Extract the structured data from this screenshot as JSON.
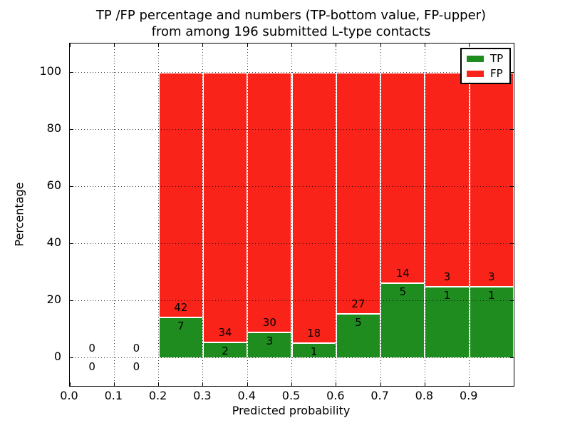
{
  "figure": {
    "title_line1": "TP /FP percentage and numbers (TP-bottom value, FP-upper)",
    "title_line2": "from among 196 submitted L-type contacts"
  },
  "axes": {
    "xlabel": "Predicted probability",
    "ylabel": "Percentage",
    "x_tick_labels": [
      "0.0",
      "0.1",
      "0.2",
      "0.3",
      "0.4",
      "0.5",
      "0.6",
      "0.7",
      "0.8",
      "0.9"
    ],
    "y_tick_labels": [
      "0",
      "20",
      "40",
      "60",
      "80",
      "100"
    ],
    "xlim": [
      0.0,
      1.0
    ],
    "ylim": [
      -10,
      110
    ],
    "grid_style": "dotted"
  },
  "legend": {
    "position": "upper-right",
    "items": [
      {
        "label": "TP",
        "color": "#1e8c1e"
      },
      {
        "label": "FP",
        "color": "#fa2319"
      }
    ]
  },
  "chart_data": {
    "type": "bar",
    "stacked": true,
    "normalized": "each non-empty bin totals 100%",
    "bin_width": 0.1,
    "categories": [
      "0.0-0.1",
      "0.1-0.2",
      "0.2-0.3",
      "0.3-0.4",
      "0.4-0.5",
      "0.5-0.6",
      "0.6-0.7",
      "0.7-0.8",
      "0.8-0.9",
      "0.9-1.0"
    ],
    "series": [
      {
        "name": "TP",
        "color": "#1e8c1e",
        "counts": [
          0,
          0,
          7,
          2,
          3,
          1,
          5,
          5,
          1,
          1
        ]
      },
      {
        "name": "FP",
        "color": "#fa2319",
        "counts": [
          0,
          0,
          42,
          34,
          30,
          18,
          27,
          14,
          3,
          3
        ]
      }
    ],
    "tp_percent_heights": [
      null,
      null,
      14.29,
      5.56,
      9.09,
      5.26,
      15.63,
      26.32,
      25.0,
      25.0
    ],
    "bar_total_percent": 100,
    "total_contacts": 196,
    "title": "TP /FP percentage and numbers (TP-bottom value, FP-upper) from among 196 submitted L-type contacts",
    "xlabel": "Predicted probability",
    "ylabel": "Percentage"
  }
}
